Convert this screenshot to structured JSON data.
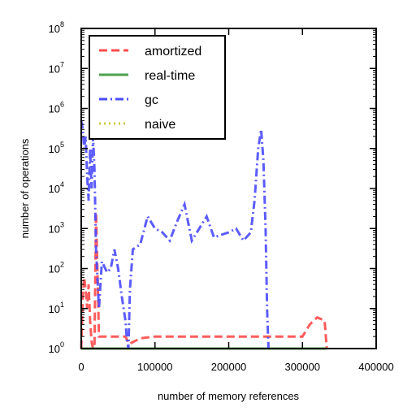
{
  "chart_data": {
    "type": "line",
    "title": "",
    "xlabel": "number of memory references",
    "ylabel": "number of operations",
    "xlim": [
      0,
      400000
    ],
    "ylim": [
      1,
      100000000
    ],
    "yscale": "log",
    "xticks": [
      0,
      100000,
      200000,
      300000,
      400000
    ],
    "xtick_labels": [
      "0",
      "100000",
      "200000",
      "300000",
      "400000"
    ],
    "yticks": [
      1,
      10,
      100,
      1000,
      10000,
      100000,
      1000000,
      10000000,
      100000000
    ],
    "ytick_base": "10",
    "ytick_exponents": [
      "0",
      "1",
      "2",
      "3",
      "4",
      "5",
      "6",
      "7",
      "8"
    ],
    "grid": false,
    "legend_position": "top-left",
    "series": [
      {
        "name": "amortized",
        "color": "#ff4a4a",
        "style": "dashed",
        "x": [
          0,
          2000,
          4000,
          6000,
          8000,
          10000,
          12000,
          14000,
          16000,
          18000,
          20000,
          22000,
          24000,
          30000,
          40000,
          60000,
          65000,
          80000,
          100000,
          150000,
          200000,
          250000,
          270000,
          300000,
          310000,
          320000,
          330000,
          333000
        ],
        "y": [
          1,
          20,
          60,
          30,
          10,
          40,
          5,
          1.5,
          1,
          1.2,
          2500,
          80,
          2,
          2,
          2,
          2,
          1.3,
          1.8,
          2,
          2,
          2,
          2,
          2,
          2,
          4,
          6,
          5,
          1
        ]
      },
      {
        "name": "real-time",
        "color": "#4ea24e",
        "style": "solid",
        "x": [
          0,
          333000
        ],
        "y": [
          1,
          1
        ]
      },
      {
        "name": "gc",
        "color": "#4a4aff",
        "style": "dashdot",
        "x": [
          0,
          2000,
          4000,
          6000,
          8000,
          10000,
          12000,
          14000,
          16000,
          18000,
          20000,
          24000,
          28000,
          35000,
          40000,
          45000,
          50000,
          55000,
          60000,
          62000,
          64000,
          66000,
          70000,
          80000,
          90000,
          100000,
          110000,
          120000,
          130000,
          140000,
          150000,
          160000,
          170000,
          180000,
          190000,
          200000,
          210000,
          220000,
          230000,
          235000,
          240000,
          244000,
          247000,
          250000,
          252000,
          254000
        ],
        "y": [
          500000,
          300000,
          100000,
          200000,
          20000,
          5000,
          100000,
          10000,
          200000,
          30000,
          300,
          10,
          150,
          80,
          100,
          300,
          100,
          20,
          5,
          1.5,
          1,
          30,
          300,
          400,
          2000,
          1000,
          800,
          500,
          1500,
          4000,
          500,
          1000,
          2000,
          600,
          700,
          800,
          1000,
          500,
          800,
          5000,
          100000,
          300000,
          50000,
          1000,
          10,
          1
        ]
      },
      {
        "name": "naive",
        "color": "#c8c83c",
        "style": "dotted",
        "x": [],
        "y": []
      }
    ]
  }
}
